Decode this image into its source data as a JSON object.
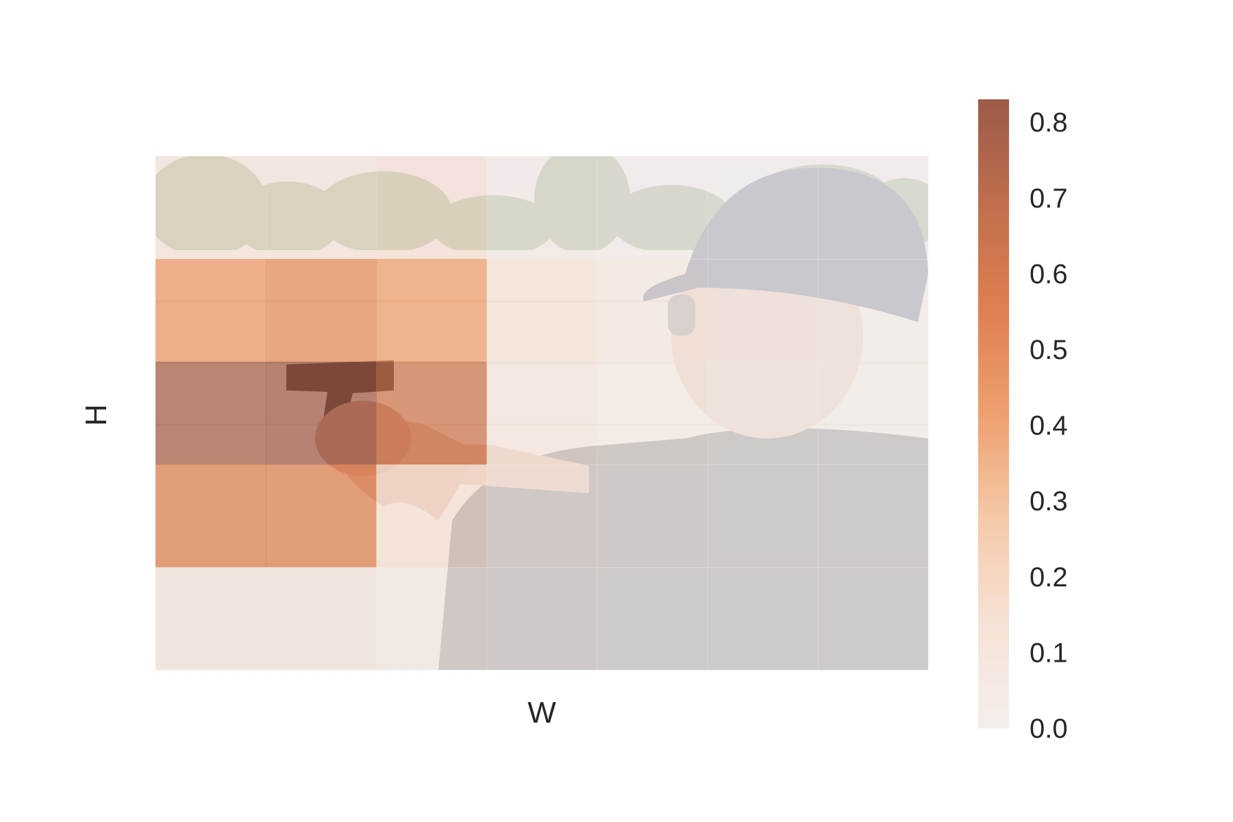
{
  "chart_data": {
    "type": "heatmap",
    "title": "",
    "xlabel": "W",
    "ylabel": "H",
    "grid": false,
    "background_image": "photo of a man in a blue baseball cap and black shirt aiming a handgun at an outdoor shooting range, trees and a white block wall in the background",
    "rows": 5,
    "cols": 7,
    "values": [
      [
        0.12,
        0.12,
        0.14,
        0.03,
        0.01,
        0.0,
        0.0
      ],
      [
        0.45,
        0.5,
        0.42,
        0.12,
        0.05,
        0.01,
        0.0
      ],
      [
        0.8,
        0.82,
        0.63,
        0.08,
        0.03,
        0.0,
        0.0
      ],
      [
        0.55,
        0.55,
        0.14,
        0.04,
        0.02,
        0.0,
        0.0
      ],
      [
        0.08,
        0.08,
        0.04,
        0.01,
        0.0,
        0.0,
        0.0
      ]
    ],
    "colorbar": {
      "vmin": 0.0,
      "vmax": 0.83,
      "ticks": [
        "0.0",
        "0.1",
        "0.2",
        "0.3",
        "0.4",
        "0.5",
        "0.6",
        "0.7",
        "0.8"
      ],
      "tick_values": [
        0.0,
        0.1,
        0.2,
        0.3,
        0.4,
        0.5,
        0.6,
        0.7,
        0.8
      ],
      "colormap": [
        "#f4eeec",
        "#f6e2d6",
        "#f5c9a8",
        "#eea070",
        "#de7f50",
        "#c06f4e",
        "#9c5a48"
      ],
      "placement": "right"
    },
    "overlay_alpha": 0.72
  }
}
